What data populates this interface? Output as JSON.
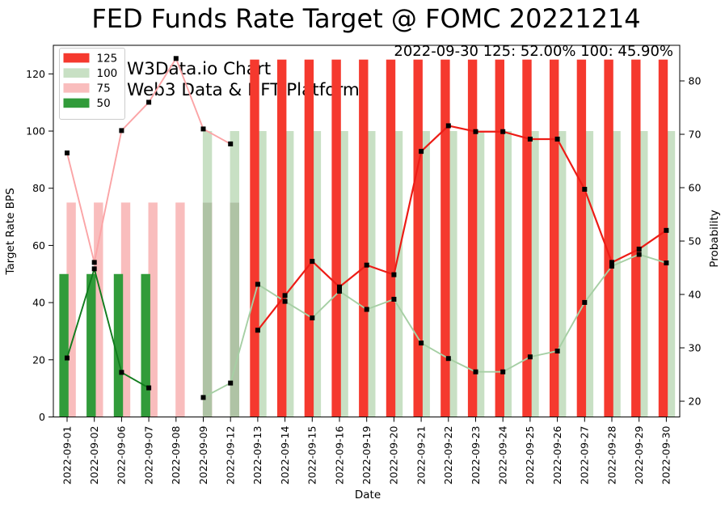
{
  "title": "FED Funds Rate Target @ FOMC 20221214",
  "watermark": {
    "line1": "W3Data.io Chart",
    "line2": "Web3 Data & NFT Platform",
    "color": "#b1b1b1"
  },
  "annotation": "2022-09-30 125: 52.00% 100: 45.90%",
  "axes": {
    "x_label": "Date",
    "y_left_label": "Target Rate BPS",
    "y_right_label": "Probability",
    "y_left_ticks": [
      0,
      20,
      40,
      60,
      80,
      100,
      120
    ],
    "y_right_ticks": [
      20,
      30,
      40,
      50,
      60,
      70,
      80
    ]
  },
  "legend": {
    "items": [
      {
        "label": "125",
        "color": "#f5392e"
      },
      {
        "label": "100",
        "color": "#c8e0c4"
      },
      {
        "label": "75",
        "color": "#f9bdbd"
      },
      {
        "label": "50",
        "color": "#319b3a"
      }
    ]
  },
  "chart_data": {
    "type": "bar+line dual-axis",
    "x_tick_rotation": 90,
    "categories": [
      "2022-09-01",
      "2022-09-02",
      "2022-09-06",
      "2022-09-07",
      "2022-09-08",
      "2022-09-09",
      "2022-09-12",
      "2022-09-13",
      "2022-09-14",
      "2022-09-15",
      "2022-09-16",
      "2022-09-19",
      "2022-09-20",
      "2022-09-21",
      "2022-09-22",
      "2022-09-23",
      "2022-09-24",
      "2022-09-25",
      "2022-09-26",
      "2022-09-27",
      "2022-09-28",
      "2022-09-29",
      "2022-09-30"
    ],
    "y_left_range": [
      0,
      130
    ],
    "y_right_range": [
      17.05,
      86.67
    ],
    "bar_unit": "bps (left axis)",
    "line_unit": "probability % (right axis)",
    "overlap_fill": "#afc3a5",
    "bar_series": [
      {
        "name": "75",
        "color": "#f9bdbd",
        "slot": "right",
        "values": [
          75,
          75,
          75,
          75,
          75,
          75,
          75,
          null,
          null,
          null,
          null,
          null,
          null,
          null,
          null,
          null,
          null,
          null,
          null,
          null,
          null,
          null,
          null
        ]
      },
      {
        "name": "50",
        "color": "#319b3a",
        "slot": "left",
        "values": [
          50,
          50,
          50,
          50,
          null,
          null,
          null,
          null,
          null,
          null,
          null,
          null,
          null,
          null,
          null,
          null,
          null,
          null,
          null,
          null,
          null,
          null,
          null
        ]
      },
      {
        "name": "100",
        "color": "#c8e0c4",
        "slot": "right",
        "values": [
          null,
          null,
          null,
          null,
          null,
          100,
          100,
          100,
          100,
          100,
          100,
          100,
          100,
          100,
          100,
          100,
          100,
          100,
          100,
          100,
          100,
          100,
          100
        ]
      },
      {
        "name": "125",
        "color": "#f5392e",
        "slot": "left",
        "values": [
          null,
          null,
          null,
          null,
          null,
          null,
          null,
          125,
          125,
          125,
          125,
          125,
          125,
          125,
          125,
          125,
          125,
          125,
          125,
          125,
          125,
          125,
          125
        ]
      }
    ],
    "line_series": [
      {
        "name": "75",
        "color": "#fba4a6",
        "width": 1.9,
        "values": [
          66.5,
          46.0,
          70.7,
          76.0,
          84.2,
          71.0,
          68.2,
          null,
          null,
          null,
          null,
          null,
          null,
          null,
          null,
          null,
          null,
          null,
          null,
          null,
          null,
          null,
          null
        ]
      },
      {
        "name": "50",
        "color": "#107c1d",
        "width": 1.9,
        "values": [
          28.1,
          44.8,
          25.4,
          22.5,
          null,
          null,
          null,
          null,
          null,
          null,
          null,
          null,
          null,
          null,
          null,
          null,
          null,
          null,
          null,
          null,
          null,
          null,
          null
        ]
      },
      {
        "name": "100",
        "color": "#a6cfa4",
        "width": 1.9,
        "values": [
          null,
          null,
          null,
          null,
          null,
          20.7,
          23.4,
          41.9,
          38.7,
          35.6,
          40.6,
          37.2,
          39.1,
          30.9,
          28.0,
          25.5,
          25.5,
          28.3,
          29.4,
          38.5,
          45.3,
          47.5,
          45.9
        ]
      },
      {
        "name": "125",
        "color": "#ed1c16",
        "width": 2.2,
        "values": [
          null,
          null,
          null,
          null,
          null,
          null,
          null,
          33.3,
          39.8,
          46.2,
          41.4,
          45.5,
          43.7,
          66.8,
          71.6,
          70.5,
          70.5,
          69.1,
          69.1,
          59.7,
          46.0,
          48.5,
          52.0
        ]
      }
    ],
    "marker": {
      "shape": "square",
      "color": "#000000",
      "size": 6
    }
  }
}
